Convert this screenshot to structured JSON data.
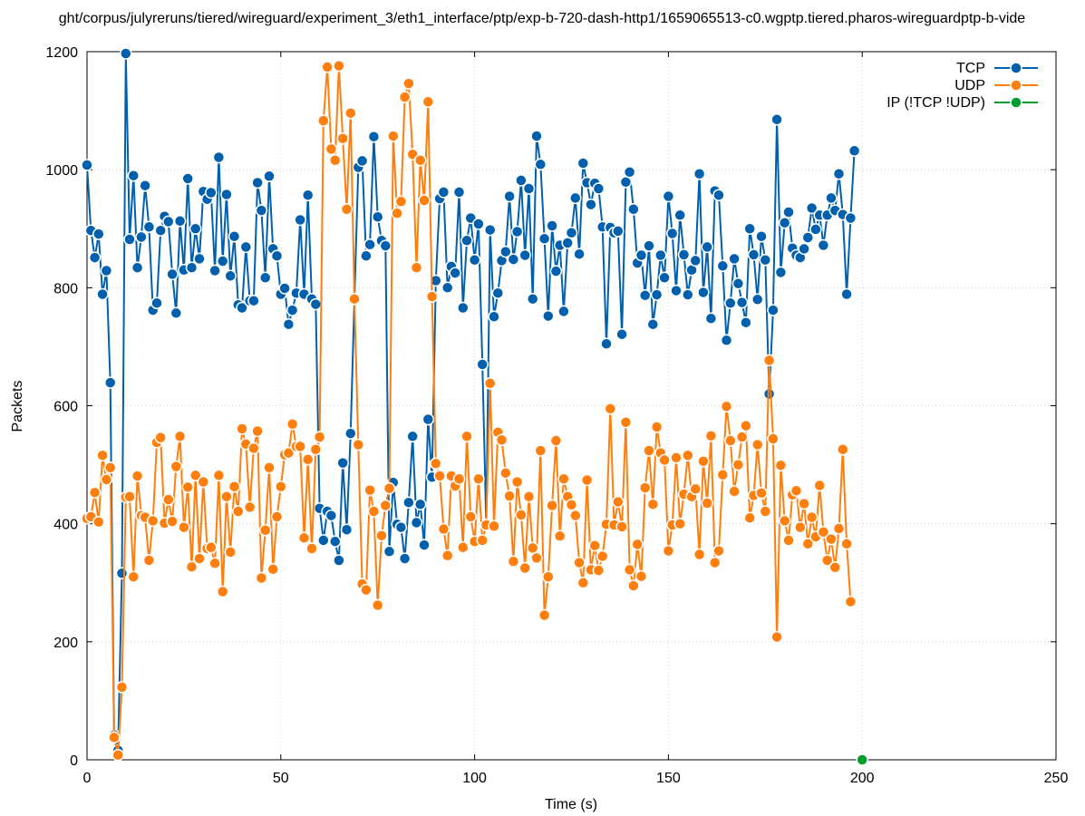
{
  "chart_data": {
    "type": "line",
    "title": "ght/corpus/julyreruns/tiered/wireguard/experiment_3/eth1_interface/ptp/exp-b-720-dash-http1/1659065513-c0.wgptp.tiered.pharos-wireguardptp-b-vide",
    "xlabel": "Time (s)",
    "ylabel": "Packets",
    "xlim": [
      0,
      250
    ],
    "ylim": [
      0,
      1200
    ],
    "xticks": [
      0,
      50,
      100,
      150,
      200,
      250
    ],
    "yticks": [
      0,
      200,
      400,
      600,
      800,
      1000,
      1200
    ],
    "grid": true,
    "legend_position": "top-right",
    "series": [
      {
        "name": "TCP",
        "color": "#0060ad",
        "values": [
          1008,
          897,
          851,
          891,
          789,
          829,
          639,
          42,
          16,
          316,
          1197,
          882,
          990,
          834,
          886,
          973,
          903,
          762,
          774,
          897,
          921,
          912,
          823,
          757,
          913,
          830,
          985,
          834,
          900,
          849,
          963,
          950,
          961,
          829,
          1021,
          845,
          958,
          820,
          887,
          771,
          766,
          869,
          778,
          778,
          978,
          931,
          817,
          989,
          866,
          854,
          789,
          799,
          738,
          762,
          791,
          915,
          789,
          957,
          781,
          772,
          426,
          372,
          421,
          414,
          370,
          338,
          503,
          390,
          553,
          780,
          1004,
          1015,
          854,
          873,
          1056,
          920,
          880,
          871,
          353,
          470,
          399,
          394,
          341,
          436,
          548,
          402,
          433,
          364,
          577,
          479,
          812,
          951,
          962,
          800,
          836,
          825,
          962,
          766,
          880,
          918,
          847,
          908,
          670,
          399,
          898,
          751,
          791,
          846,
          861,
          955,
          848,
          895,
          982,
          855,
          968,
          781,
          1057,
          1009,
          883,
          752,
          905,
          828,
          872,
          760,
          876,
          893,
          952,
          857,
          1011,
          978,
          941,
          977,
          968,
          903,
          705,
          902,
          893,
          896,
          721,
          979,
          996,
          933,
          842,
          855,
          787,
          871,
          738,
          788,
          855,
          817,
          955,
          892,
          795,
          923,
          856,
          788,
          830,
          846,
          993,
          792,
          869,
          748,
          964,
          957,
          837,
          711,
          774,
          849,
          807,
          775,
          741,
          900,
          856,
          780,
          887,
          847,
          620,
          762,
          1085,
          826,
          910,
          928,
          867,
          855,
          851,
          866,
          885,
          935,
          899,
          923,
          872,
          923,
          952,
          931,
          993,
          924,
          789,
          918,
          1032
        ]
      },
      {
        "name": "UDP",
        "color": "#ff7f0e",
        "values": [
          409,
          412,
          453,
          403,
          516,
          475,
          495,
          38,
          8,
          123,
          445,
          446,
          310,
          481,
          414,
          411,
          338,
          405,
          538,
          546,
          401,
          441,
          404,
          497,
          548,
          394,
          462,
          327,
          482,
          341,
          471,
          358,
          360,
          333,
          482,
          285,
          446,
          352,
          463,
          421,
          561,
          535,
          428,
          528,
          557,
          308,
          389,
          495,
          323,
          412,
          463,
          517,
          520,
          569,
          531,
          531,
          376,
          509,
          358,
          526,
          547,
          1083,
          1174,
          1035,
          1016,
          1176,
          1053,
          933,
          1096,
          781,
          534,
          298,
          288,
          457,
          421,
          262,
          380,
          431,
          460,
          1057,
          926,
          946,
          1123,
          1146,
          1026,
          834,
          1016,
          948,
          1115,
          785,
          502,
          481,
          391,
          346,
          481,
          464,
          476,
          360,
          548,
          412,
          370,
          476,
          372,
          398,
          638,
          396,
          555,
          542,
          486,
          447,
          336,
          471,
          415,
          325,
          446,
          359,
          342,
          524,
          245,
          310,
          431,
          541,
          379,
          476,
          446,
          432,
          414,
          334,
          300,
          474,
          322,
          363,
          321,
          345,
          399,
          595,
          398,
          437,
          395,
          572,
          322,
          295,
          365,
          311,
          461,
          524,
          433,
          564,
          520,
          508,
          354,
          398,
          512,
          400,
          450,
          516,
          446,
          459,
          348,
          506,
          435,
          549,
          334,
          354,
          483,
          599,
          541,
          455,
          500,
          547,
          566,
          410,
          448,
          534,
          452,
          421,
          677,
          544,
          208,
          499,
          405,
          372,
          449,
          456,
          394,
          434,
          366,
          411,
          378,
          465,
          386,
          338,
          374,
          326,
          392,
          526,
          366,
          268
        ]
      },
      {
        "name": "IP (!TCP  !UDP)",
        "color": "#009e2f",
        "points": [
          [
            200,
            0
          ]
        ]
      }
    ]
  }
}
